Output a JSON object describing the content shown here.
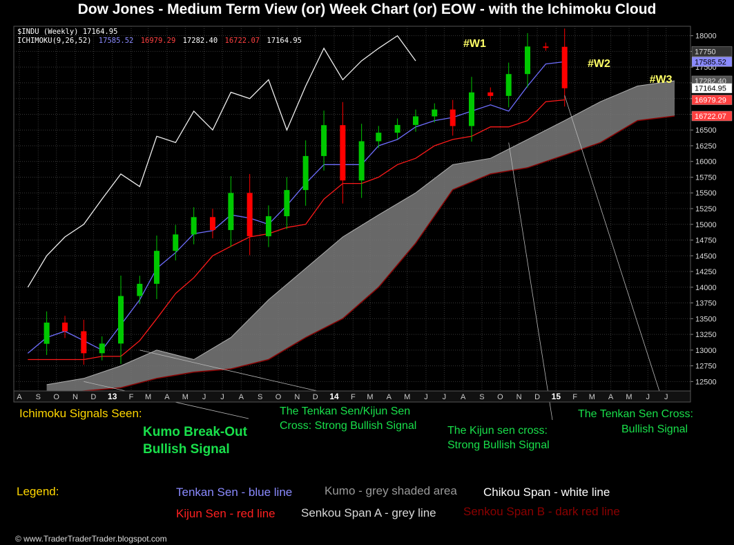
{
  "title": "Dow Jones - Medium Term View (or) Week Chart (or) EOW - with the Ichimoku Cloud",
  "header": {
    "symbol": "$INDU (Weekly) 17164.95",
    "indicator_name": "ICHIMOKU(9,26,52)",
    "tenkan": "17585.52",
    "kijun": "16979.29",
    "span_a": "17282.40",
    "span_b": "16722.07",
    "chikou": "17164.95"
  },
  "colors": {
    "background": "#000000",
    "grid": "#3a3a3a",
    "up_candle": "#00c800",
    "down_candle": "#ff0000",
    "tenkan": "#6e6eff",
    "kijun": "#ff1a1a",
    "chikou": "#f0f0f0",
    "kumo": "#7a7a7a",
    "span_b": "#8b0000",
    "annotation": "#19e04b",
    "wave_label": "#ffff66",
    "legend_heading": "#ffd700"
  },
  "chart_data": {
    "type": "line",
    "title": "Dow Jones - Medium Term View (or) Week Chart (or) EOW - with the Ichimoku Cloud",
    "ylim": [
      12350,
      18150
    ],
    "y_ticks": [
      12500,
      12750,
      13000,
      13250,
      13500,
      13750,
      14000,
      14250,
      14500,
      14750,
      15000,
      15250,
      15500,
      15750,
      16000,
      16250,
      16500,
      16750,
      17000,
      17250,
      17500,
      17750,
      18000
    ],
    "x_tick_labels": [
      "A",
      "S",
      "O",
      "N",
      "D",
      "13",
      "F",
      "M",
      "A",
      "M",
      "J",
      "J",
      "A",
      "S",
      "O",
      "N",
      "D",
      "14",
      "F",
      "M",
      "A",
      "M",
      "J",
      "J",
      "A",
      "S",
      "O",
      "N",
      "D",
      "15",
      "F",
      "M",
      "A",
      "M",
      "J",
      "J"
    ],
    "price_x": [
      "2012-08",
      "2012-09",
      "2012-10",
      "2012-11",
      "2012-12",
      "2013-01",
      "2013-02",
      "2013-03",
      "2013-04",
      "2013-05",
      "2013-06",
      "2013-07",
      "2013-08",
      "2013-09",
      "2013-10",
      "2013-11",
      "2013-12",
      "2014-01",
      "2014-02",
      "2014-03",
      "2014-04",
      "2014-05",
      "2014-06",
      "2014-07",
      "2014-08",
      "2014-09",
      "2014-10",
      "2014-11",
      "2014-12",
      "2015-01"
    ],
    "series": [
      {
        "name": "Close",
        "values": [
          13100,
          13437,
          13300,
          12950,
          13104,
          13860,
          14054,
          14578,
          14839,
          15115,
          14909,
          15499,
          14810,
          15129,
          15545,
          16086,
          16577,
          15698,
          16321,
          16457,
          16580,
          16717,
          16826,
          16563,
          17098,
          17042,
          17390,
          17828,
          17823,
          17164
        ]
      },
      {
        "name": "Tenkan Sen",
        "values": [
          12950,
          13200,
          13300,
          13150,
          13000,
          13400,
          13800,
          14300,
          14550,
          14850,
          14900,
          15150,
          15100,
          15000,
          15300,
          15650,
          15950,
          15950,
          15950,
          16250,
          16350,
          16550,
          16650,
          16700,
          16800,
          16900,
          16800,
          17200,
          17550,
          17585
        ]
      },
      {
        "name": "Kijun Sen",
        "values": [
          12850,
          12850,
          12850,
          12850,
          12900,
          12900,
          13150,
          13500,
          13900,
          14150,
          14500,
          14650,
          14800,
          14850,
          14950,
          15000,
          15400,
          15650,
          15650,
          15750,
          15950,
          16050,
          16250,
          16350,
          16400,
          16550,
          16550,
          16650,
          16950,
          16979
        ]
      },
      {
        "name": "Chikou Span",
        "values": [
          14000,
          14500,
          14800,
          15000,
          15400,
          15800,
          15600,
          16400,
          16300,
          16800,
          16500,
          17100,
          17000,
          17300,
          16500,
          17200,
          17800,
          17300,
          17600,
          17800,
          18000,
          17600
        ]
      }
    ],
    "kumo": {
      "x": [
        "2012-09",
        "2012-11",
        "2013-01",
        "2013-03",
        "2013-05",
        "2013-07",
        "2013-09",
        "2013-11",
        "2014-01",
        "2014-03",
        "2014-05",
        "2014-07",
        "2014-09",
        "2014-11",
        "2015-01",
        "2015-03",
        "2015-05",
        "2015-07"
      ],
      "span_a": [
        12450,
        12550,
        12750,
        13000,
        12850,
        13200,
        13800,
        14300,
        14800,
        15150,
        15500,
        15950,
        16050,
        16350,
        16650,
        16950,
        17200,
        17282
      ],
      "span_b": [
        12300,
        12350,
        12400,
        12550,
        12650,
        12700,
        12850,
        13200,
        13500,
        14000,
        14700,
        15550,
        15800,
        15900,
        16100,
        16300,
        16650,
        16722
      ]
    },
    "price_labels": [
      "17750",
      "17585.52",
      "17282.40",
      "17164.95",
      "16979.29",
      "16722.07"
    ],
    "wave_labels": [
      "#W1",
      "#W2",
      "#W3"
    ],
    "legend": [
      "Tenkan Sen - blue line",
      "Kumo - grey shaded area",
      "Chikou Span - white line",
      "Kijun Sen - red line",
      "Senkou Span A - grey line",
      "Senkou Span B - dark red line"
    ],
    "grid": true
  },
  "annotations": {
    "signals_heading": "Ichimoku Signals Seen:",
    "kumo_breakout_1": "Kumo Break-Out",
    "kumo_breakout_2": "Bullish Signal",
    "tk_cross_1": "The Tenkan Sen/Kijun Sen",
    "tk_cross_2": "Cross: Strong Bullish Signal",
    "kijun_cross_1": "The Kijun sen cross:",
    "kijun_cross_2": "Strong Bullish Signal",
    "tenkan_cross_1": "The Tenkan Sen Cross:",
    "tenkan_cross_2": "Bullish Signal"
  },
  "legend": {
    "heading": "Legend:",
    "tenkan": "Tenkan Sen - blue line",
    "kumo": "Kumo - grey shaded area",
    "chikou": "Chikou Span - white line",
    "kijun": "Kijun Sen - red line",
    "span_a": "Senkou Span A - grey line",
    "span_b": "Senkou Span B - dark red line"
  },
  "copyright": "© www.TraderTraderTrader.blogspot.com"
}
